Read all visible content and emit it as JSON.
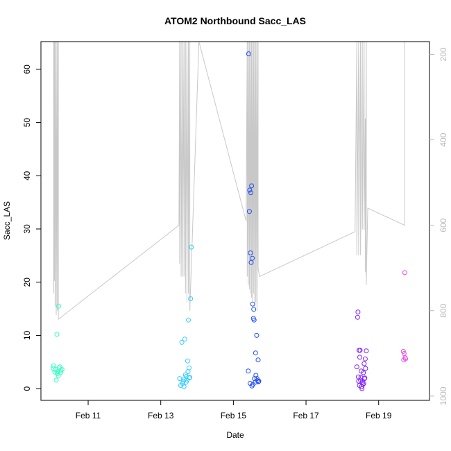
{
  "chart_data": {
    "type": "scatter",
    "title": "ATOM2 Northbound Sacc_LAS",
    "xlabel": "Date",
    "ylabel": "Sacc_LAS",
    "x_ticks": [
      "Feb 11",
      "Feb 13",
      "Feb 15",
      "Feb 17",
      "Feb 19"
    ],
    "x_tick_values": [
      11,
      13,
      15,
      17,
      19
    ],
    "xlim": [
      9.7,
      20.4
    ],
    "y_ticks": [
      0,
      10,
      20,
      30,
      40,
      50,
      60
    ],
    "ylim": [
      -2.2,
      65.2
    ],
    "y2_ticks": [
      200,
      400,
      600,
      800,
      1000
    ],
    "y2lim": [
      1010,
      170
    ],
    "y2_tick_color": "#bbbbbb",
    "grid": false,
    "points_axis": "left",
    "points_x_unit": "day of February (fractional)",
    "points": [
      [
        10.05,
        4.3,
        "#33ffc2"
      ],
      [
        10.1,
        3.6,
        "#33ffc2"
      ],
      [
        10.15,
        2.8,
        "#33ffc2"
      ],
      [
        10.2,
        3.9,
        "#33ffc2"
      ],
      [
        10.25,
        3.4,
        "#33ffc2"
      ],
      [
        10.12,
        1.6,
        "#33ffc2"
      ],
      [
        10.08,
        3.1,
        "#33ffc2"
      ],
      [
        10.18,
        2.4,
        "#33ffc2"
      ],
      [
        10.22,
        4.1,
        "#33ffc2"
      ],
      [
        10.28,
        3.6,
        "#33ffc2"
      ],
      [
        10.14,
        10.2,
        "#33ffc2"
      ],
      [
        10.19,
        15.5,
        "#33ffc2"
      ],
      [
        10.04,
        3.8,
        "#33ffc2"
      ],
      [
        10.16,
        3.2,
        "#33ffc2"
      ],
      [
        10.24,
        3.0,
        "#33ffc2"
      ],
      [
        13.55,
        0.6,
        "#33ccff"
      ],
      [
        13.6,
        1.0,
        "#33ccff"
      ],
      [
        13.65,
        1.8,
        "#33ccff"
      ],
      [
        13.7,
        2.3,
        "#33ccff"
      ],
      [
        13.75,
        3.2,
        "#33ccff"
      ],
      [
        13.8,
        2.1,
        "#33ccff"
      ],
      [
        13.62,
        1.4,
        "#33ccff"
      ],
      [
        13.68,
        2.6,
        "#33ccff"
      ],
      [
        13.72,
        1.6,
        "#33ccff"
      ],
      [
        13.78,
        3.9,
        "#33ccff"
      ],
      [
        13.74,
        5.2,
        "#33ccff"
      ],
      [
        13.58,
        8.7,
        "#33ccff"
      ],
      [
        13.66,
        9.3,
        "#33ccff"
      ],
      [
        13.76,
        12.9,
        "#33ccff"
      ],
      [
        13.82,
        16.9,
        "#33ccff"
      ],
      [
        13.84,
        26.6,
        "#33ccff"
      ],
      [
        13.52,
        1.9,
        "#33ccff"
      ],
      [
        13.64,
        0.4,
        "#33ccff"
      ],
      [
        13.7,
        1.2,
        "#33ccff"
      ],
      [
        13.79,
        2.0,
        "#33ccff"
      ],
      [
        15.42,
        62.9,
        "#1f4cf5"
      ],
      [
        15.45,
        37.3,
        "#1f4cf5"
      ],
      [
        15.48,
        36.8,
        "#1f4cf5"
      ],
      [
        15.5,
        38.1,
        "#1f4cf5"
      ],
      [
        15.44,
        33.3,
        "#1f4cf5"
      ],
      [
        15.47,
        25.5,
        "#1f4cf5"
      ],
      [
        15.52,
        24.5,
        "#1f4cf5"
      ],
      [
        15.49,
        23.7,
        "#1f4cf5"
      ],
      [
        15.53,
        15.9,
        "#1f4cf5"
      ],
      [
        15.56,
        14.9,
        "#1f4cf5"
      ],
      [
        15.55,
        13.2,
        "#1f4cf5"
      ],
      [
        15.57,
        12.9,
        "#1f4cf5"
      ],
      [
        15.64,
        10.0,
        "#1f4cf5"
      ],
      [
        15.61,
        6.7,
        "#1f4cf5"
      ],
      [
        15.68,
        5.4,
        "#1f4cf5"
      ],
      [
        15.41,
        3.3,
        "#1f4cf5"
      ],
      [
        15.46,
        1.0,
        "#1f4cf5"
      ],
      [
        15.51,
        0.5,
        "#1f4cf5"
      ],
      [
        15.58,
        1.9,
        "#1f4cf5"
      ],
      [
        15.62,
        2.5,
        "#1f4cf5"
      ],
      [
        15.66,
        1.5,
        "#1f4cf5"
      ],
      [
        15.7,
        1.4,
        "#1f4cf5"
      ],
      [
        15.6,
        1.2,
        "#1f4cf5"
      ],
      [
        15.54,
        0.8,
        "#1f4cf5"
      ],
      [
        15.65,
        1.9,
        "#1f4cf5"
      ],
      [
        15.69,
        1.3,
        "#1f4cf5"
      ],
      [
        18.43,
        14.4,
        "#7f1fff"
      ],
      [
        18.42,
        13.4,
        "#7f1fff"
      ],
      [
        18.46,
        7.2,
        "#7f1fff"
      ],
      [
        18.49,
        7.2,
        "#7f1fff"
      ],
      [
        18.66,
        7.1,
        "#7f1fff"
      ],
      [
        18.48,
        5.9,
        "#7f1fff"
      ],
      [
        18.63,
        5.6,
        "#7f1fff"
      ],
      [
        18.6,
        4.7,
        "#7f1fff"
      ],
      [
        18.4,
        4.1,
        "#7f1fff"
      ],
      [
        18.52,
        3.3,
        "#7f1fff"
      ],
      [
        18.58,
        3.0,
        "#7f1fff"
      ],
      [
        18.64,
        3.8,
        "#7f1fff"
      ],
      [
        18.44,
        2.2,
        "#7f1fff"
      ],
      [
        18.5,
        1.6,
        "#7f1fff"
      ],
      [
        18.55,
        1.2,
        "#7f1fff"
      ],
      [
        18.47,
        0.6,
        "#7f1fff"
      ],
      [
        18.53,
        0.4,
        "#7f1fff"
      ],
      [
        18.57,
        0.8,
        "#7f1fff"
      ],
      [
        18.61,
        1.9,
        "#7f1fff"
      ],
      [
        18.45,
        1.4,
        "#7f1fff"
      ],
      [
        18.51,
        2.1,
        "#7f1fff"
      ],
      [
        18.54,
        0.0,
        "#7f1fff"
      ],
      [
        18.59,
        1.0,
        "#7f1fff"
      ],
      [
        18.62,
        2.0,
        "#7f1fff"
      ],
      [
        19.72,
        21.8,
        "#e64ce6"
      ],
      [
        19.68,
        7.0,
        "#e64ce6"
      ],
      [
        19.7,
        6.6,
        "#e64ce6"
      ],
      [
        19.73,
        5.8,
        "#e64ce6"
      ],
      [
        19.69,
        5.4,
        "#e64ce6"
      ],
      [
        19.74,
        5.6,
        "#e64ce6"
      ]
    ],
    "depth_line_color": "#c8c8c8",
    "depth_line_axis": "right",
    "depth_line": [
      [
        10.05,
        170
      ],
      [
        10.05,
        760
      ],
      [
        10.07,
        170
      ],
      [
        10.07,
        730
      ],
      [
        10.09,
        170
      ],
      [
        10.09,
        790
      ],
      [
        10.12,
        170
      ],
      [
        10.12,
        810
      ],
      [
        10.15,
        170
      ],
      [
        10.15,
        800
      ],
      [
        10.18,
        170
      ],
      [
        10.18,
        820
      ],
      [
        13.5,
        600
      ],
      [
        13.52,
        170
      ],
      [
        13.52,
        690
      ],
      [
        13.56,
        170
      ],
      [
        13.56,
        720
      ],
      [
        13.6,
        170
      ],
      [
        13.6,
        720
      ],
      [
        13.64,
        170
      ],
      [
        13.64,
        720
      ],
      [
        13.68,
        170
      ],
      [
        13.68,
        760
      ],
      [
        13.72,
        170
      ],
      [
        13.72,
        780
      ],
      [
        13.76,
        170
      ],
      [
        13.76,
        760
      ],
      [
        13.8,
        170
      ],
      [
        13.8,
        800
      ],
      [
        14.05,
        170
      ],
      [
        15.35,
        590
      ],
      [
        15.38,
        170
      ],
      [
        15.38,
        720
      ],
      [
        15.41,
        170
      ],
      [
        15.41,
        740
      ],
      [
        15.44,
        170
      ],
      [
        15.44,
        750
      ],
      [
        15.47,
        170
      ],
      [
        15.47,
        760
      ],
      [
        15.5,
        170
      ],
      [
        15.5,
        770
      ],
      [
        15.53,
        170
      ],
      [
        15.53,
        780
      ],
      [
        15.56,
        170
      ],
      [
        15.56,
        760
      ],
      [
        15.59,
        170
      ],
      [
        15.59,
        790
      ],
      [
        15.62,
        170
      ],
      [
        15.62,
        780
      ],
      [
        15.65,
        170
      ],
      [
        15.65,
        800
      ],
      [
        15.68,
        170
      ],
      [
        15.68,
        700
      ],
      [
        15.72,
        720
      ],
      [
        18.35,
        615
      ],
      [
        18.4,
        170
      ],
      [
        18.4,
        670
      ],
      [
        18.45,
        170
      ],
      [
        18.45,
        670
      ],
      [
        18.5,
        170
      ],
      [
        18.5,
        670
      ],
      [
        18.55,
        170
      ],
      [
        18.55,
        610
      ],
      [
        18.6,
        170
      ],
      [
        18.6,
        610
      ],
      [
        18.63,
        350
      ],
      [
        18.63,
        710
      ],
      [
        18.66,
        170
      ],
      [
        18.66,
        740
      ],
      [
        18.7,
        560
      ],
      [
        19.72,
        600
      ],
      [
        19.72,
        170
      ]
    ]
  }
}
